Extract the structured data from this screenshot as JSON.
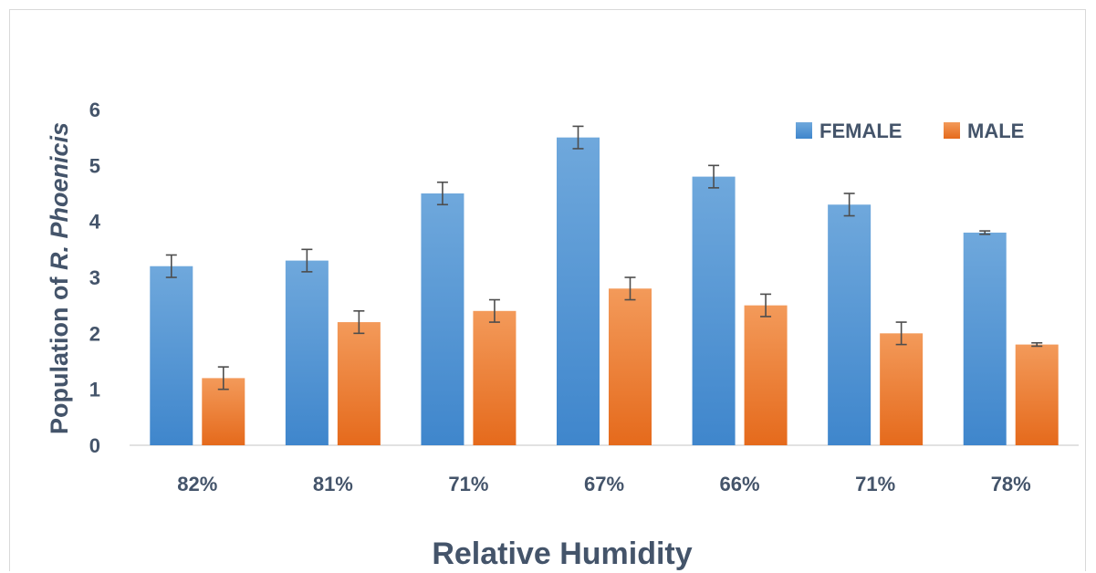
{
  "chart_data": {
    "type": "bar",
    "categories": [
      "82%",
      "81%",
      "71%",
      "67%",
      "66%",
      "71%",
      "78%"
    ],
    "series": [
      {
        "name": "FEMALE",
        "color": "#5b9bd5",
        "values": [
          3.2,
          3.3,
          4.5,
          5.5,
          4.8,
          4.3,
          3.8
        ],
        "errors": [
          0.2,
          0.2,
          0.2,
          0.2,
          0.2,
          0.2,
          0.03
        ]
      },
      {
        "name": "MALE",
        "color": "#ed7d31",
        "values": [
          1.2,
          2.2,
          2.4,
          2.8,
          2.5,
          2.0,
          1.8
        ],
        "errors": [
          0.2,
          0.2,
          0.2,
          0.2,
          0.2,
          0.2,
          0.03
        ]
      }
    ],
    "ylim": [
      0,
      6
    ],
    "yticks": [
      "0",
      "1",
      "2",
      "3",
      "4",
      "5",
      "6"
    ],
    "xlabel": "Relative Humidity",
    "ylabel_prefix": "Population of ",
    "ylabel_italic": "R. Phoenicis",
    "legend_position": "top-right",
    "grid": false
  }
}
